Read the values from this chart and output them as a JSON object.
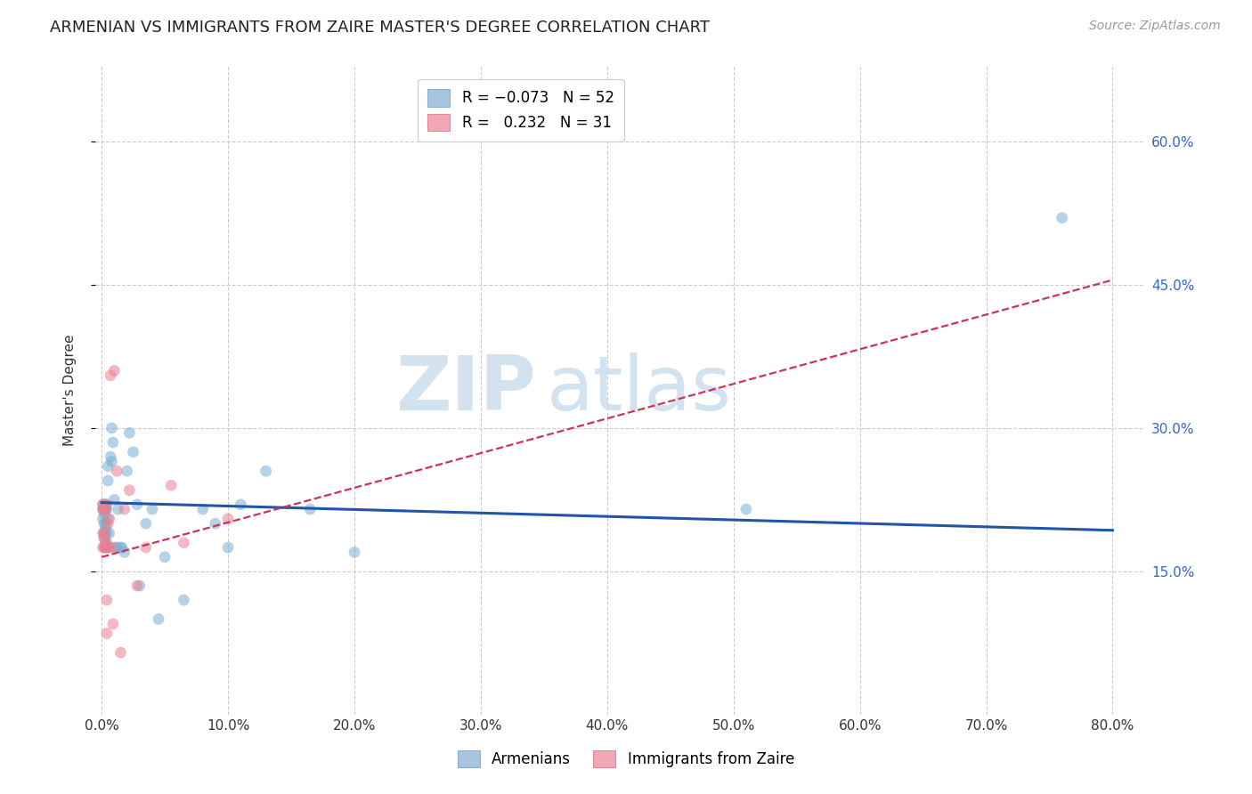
{
  "title": "ARMENIAN VS IMMIGRANTS FROM ZAIRE MASTER'S DEGREE CORRELATION CHART",
  "source": "Source: ZipAtlas.com",
  "ylabel": "Master's Degree",
  "xlabel_ticks": [
    "0.0%",
    "10.0%",
    "20.0%",
    "30.0%",
    "40.0%",
    "50.0%",
    "60.0%",
    "70.0%",
    "80.0%"
  ],
  "xlabel_vals": [
    0.0,
    0.1,
    0.2,
    0.3,
    0.4,
    0.5,
    0.6,
    0.7,
    0.8
  ],
  "ytick_labels": [
    "15.0%",
    "30.0%",
    "45.0%",
    "60.0%"
  ],
  "ytick_vals": [
    0.15,
    0.3,
    0.45,
    0.6
  ],
  "xlim": [
    -0.005,
    0.825
  ],
  "ylim": [
    0.0,
    0.68
  ],
  "armenians_scatter_x": [
    0.001,
    0.001,
    0.001,
    0.002,
    0.002,
    0.002,
    0.002,
    0.002,
    0.003,
    0.003,
    0.003,
    0.003,
    0.003,
    0.004,
    0.004,
    0.004,
    0.004,
    0.005,
    0.005,
    0.005,
    0.005,
    0.006,
    0.007,
    0.008,
    0.008,
    0.009,
    0.01,
    0.011,
    0.012,
    0.013,
    0.015,
    0.016,
    0.018,
    0.02,
    0.022,
    0.025,
    0.028,
    0.03,
    0.035,
    0.04,
    0.045,
    0.05,
    0.065,
    0.08,
    0.09,
    0.1,
    0.11,
    0.13,
    0.165,
    0.2,
    0.51,
    0.76
  ],
  "armenians_scatter_y": [
    0.215,
    0.205,
    0.22,
    0.19,
    0.21,
    0.215,
    0.2,
    0.185,
    0.195,
    0.215,
    0.22,
    0.175,
    0.2,
    0.18,
    0.19,
    0.215,
    0.22,
    0.245,
    0.175,
    0.205,
    0.26,
    0.19,
    0.27,
    0.265,
    0.3,
    0.285,
    0.225,
    0.175,
    0.175,
    0.215,
    0.175,
    0.175,
    0.17,
    0.255,
    0.295,
    0.275,
    0.22,
    0.135,
    0.2,
    0.215,
    0.1,
    0.165,
    0.12,
    0.215,
    0.2,
    0.175,
    0.22,
    0.255,
    0.215,
    0.17,
    0.215,
    0.52
  ],
  "zaire_scatter_x": [
    0.001,
    0.001,
    0.001,
    0.001,
    0.002,
    0.002,
    0.002,
    0.002,
    0.003,
    0.003,
    0.003,
    0.003,
    0.004,
    0.004,
    0.004,
    0.005,
    0.005,
    0.006,
    0.007,
    0.008,
    0.009,
    0.01,
    0.012,
    0.015,
    0.018,
    0.022,
    0.028,
    0.035,
    0.055,
    0.065,
    0.1
  ],
  "zaire_scatter_y": [
    0.175,
    0.19,
    0.215,
    0.22,
    0.175,
    0.185,
    0.19,
    0.215,
    0.175,
    0.18,
    0.215,
    0.22,
    0.12,
    0.085,
    0.175,
    0.2,
    0.175,
    0.205,
    0.355,
    0.175,
    0.095,
    0.36,
    0.255,
    0.065,
    0.215,
    0.235,
    0.135,
    0.175,
    0.24,
    0.18,
    0.205
  ],
  "armenians_line_x": [
    0.0,
    0.8
  ],
  "armenians_line_y": [
    0.222,
    0.193
  ],
  "zaire_line_x": [
    0.0,
    0.8
  ],
  "zaire_line_y": [
    0.165,
    0.455
  ],
  "scatter_alpha": 0.55,
  "scatter_size": 85,
  "armenians_color": "#7aadd4",
  "zaire_color": "#e88090",
  "armenians_line_color": "#2255aa",
  "zaire_line_color": "#cc3355",
  "grid_color": "#cccccc",
  "watermark_top": "ZIP",
  "watermark_bottom": "atlas",
  "watermark_color": "#ccdded",
  "title_fontsize": 13,
  "axis_label_fontsize": 11,
  "tick_fontsize": 11,
  "legend_fontsize": 12,
  "source_fontsize": 10,
  "ytick_color": "#3366cc",
  "xtick_color": "#333333"
}
